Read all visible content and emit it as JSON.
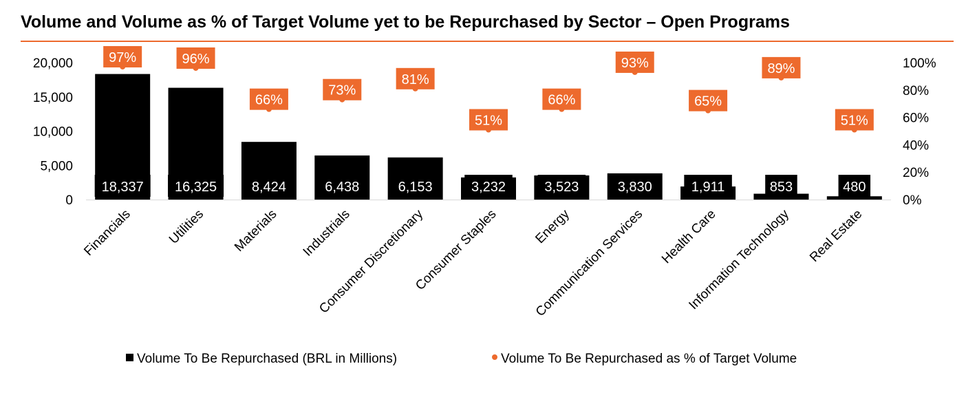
{
  "chart_data": {
    "type": "bar",
    "title": "Volume and Volume as % of Target Volume yet to be Repurchased by Sector – Open Programs",
    "categories": [
      "Financials",
      "Utilities",
      "Materials",
      "Industrials",
      "Consumer Discretionary",
      "Consumer Staples",
      "Energy",
      "Communication Services",
      "Health Care",
      "Information Technology",
      "Real Estate"
    ],
    "series": [
      {
        "name": "Volume To Be Repurchased (BRL in Millions)",
        "type": "bar",
        "axis": "left",
        "color": "#000000",
        "values": [
          18337,
          16325,
          8424,
          6438,
          6153,
          3232,
          3523,
          3830,
          1911,
          853,
          480
        ],
        "labels": [
          "18,337",
          "16,325",
          "8,424",
          "6,438",
          "6,153",
          "3,232",
          "3,523",
          "3,830",
          "1,911",
          "853",
          "480"
        ]
      },
      {
        "name": "Volume To Be Repurchased as % of Target Volume",
        "type": "scatter",
        "axis": "right",
        "color": "#ED6A2D",
        "values": [
          97,
          96,
          66,
          73,
          81,
          51,
          66,
          93,
          65,
          89,
          51
        ],
        "labels": [
          "97%",
          "96%",
          "66%",
          "73%",
          "81%",
          "51%",
          "66%",
          "93%",
          "65%",
          "89%",
          "51%"
        ]
      }
    ],
    "y_left": {
      "ylim": [
        0,
        20000
      ],
      "ticks": [
        "0",
        "5,000",
        "10,000",
        "15,000",
        "20,000"
      ]
    },
    "y_right": {
      "ylim": [
        0,
        100
      ],
      "ticks": [
        "0%",
        "20%",
        "40%",
        "60%",
        "80%",
        "100%"
      ]
    },
    "grid": false,
    "legend_position": "bottom",
    "accent_color": "#ED6A2D"
  }
}
